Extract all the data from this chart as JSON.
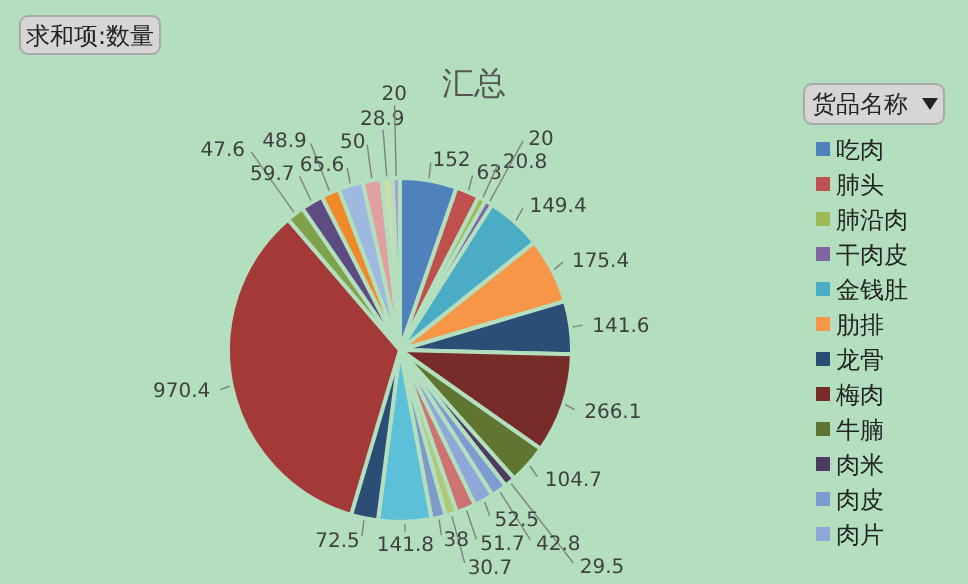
{
  "chart_data": {
    "type": "pie",
    "title": "汇总",
    "legend_title": "货品名称",
    "legend": "right",
    "data_labels": true,
    "annotations": [
      "求和项:数量"
    ],
    "categories": [
      "吃肉",
      "肺头",
      "肺沿肉",
      "干肉皮",
      "金钱肚",
      "肋排",
      "龙骨",
      "梅肉",
      "牛腩",
      "肉米",
      "肉皮",
      "肉片",
      null,
      null,
      null,
      null,
      null,
      null,
      null,
      null,
      null,
      null,
      null,
      null,
      null
    ],
    "values": [
      152,
      63,
      20.8,
      20,
      149.4,
      175.4,
      141.6,
      266.1,
      104.7,
      29.5,
      42.8,
      52.5,
      51.7,
      30.7,
      38,
      141.8,
      72.5,
      970.4,
      47.6,
      59.7,
      48.9,
      65.6,
      50,
      28.9,
      20
    ],
    "colors": [
      "#4f81bd",
      "#c0504d",
      "#9bbb59",
      "#8064a2",
      "#4bacc6",
      "#f79646",
      "#2c4d75",
      "#772c2a",
      "#5f7530",
      "#4d3b62",
      "#7c9bd0",
      "#8fa8da",
      "#cd7371",
      "#afc97a",
      "#7e9ac8",
      "#5bc0d8",
      "#2c4d75",
      "#a33a38",
      "#7ea14a",
      "#5e4b82",
      "#f08a28",
      "#9db9e0",
      "#e0a0a0",
      "#c8ddb0",
      "#a8a0d0"
    ]
  }
}
